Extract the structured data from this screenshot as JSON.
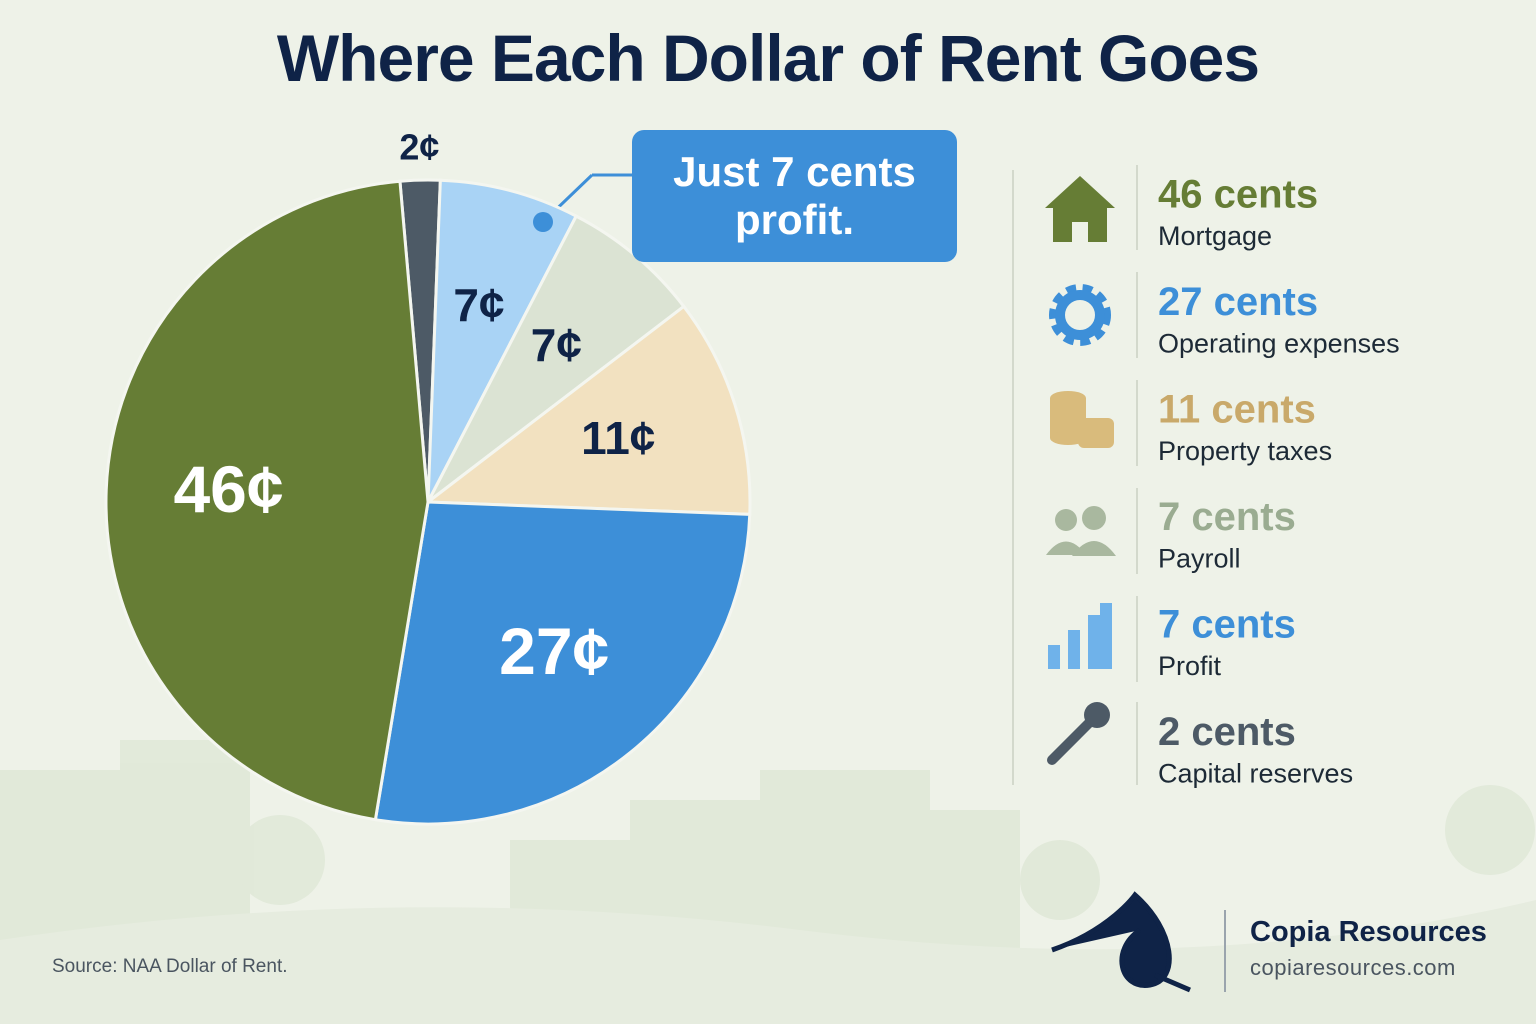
{
  "chart_data": {
    "type": "pie",
    "title": "Where Each Dollar of Rent Goes",
    "categories": [
      "Mortgage",
      "Operating expenses",
      "Property taxes",
      "Payroll",
      "Profit",
      "Capital reserves"
    ],
    "values": [
      46,
      27,
      11,
      7,
      7,
      2
    ],
    "value_labels": [
      "46¢",
      "27¢",
      "11¢",
      "7¢",
      "7¢",
      "2¢"
    ],
    "legend_value_labels": [
      "46 cents",
      "27 cents",
      "11 cents",
      "7 cents",
      "7 cents",
      "2 cents"
    ],
    "colors": [
      "#667d35",
      "#3d8fd8",
      "#f2e1c0",
      "#dbe3d3",
      "#a9d3f5",
      "#4d5a66"
    ],
    "legend_colors": [
      "#667d35",
      "#3d8fd8",
      "#c9a96a",
      "#9aac91",
      "#3d8fd8",
      "#4d5a66"
    ],
    "annotation": "Just 7 cents profit.",
    "source": "Source: NAA Dollar of Rent."
  },
  "footer": {
    "brand": "Copia Resources",
    "url": "copiaresources.com"
  }
}
